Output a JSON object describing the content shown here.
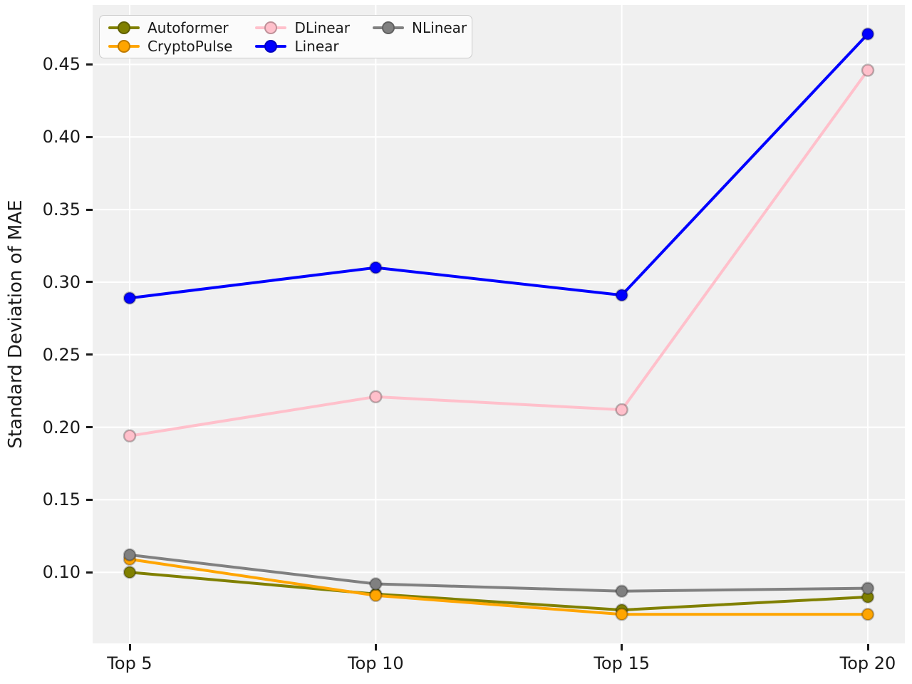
{
  "figure": {
    "background": "#ffffff",
    "plot_background": "#f0f0f0",
    "gridline_color": "#ffffff",
    "text_color": "#1a1a1a"
  },
  "chart_data": {
    "type": "line",
    "title": "",
    "xlabel": "",
    "ylabel": "Standard Deviation of MAE",
    "categories": [
      "Top 5",
      "Top 10",
      "Top 15",
      "Top 20"
    ],
    "series": [
      {
        "name": "Autoformer",
        "color": "#808000",
        "values": [
          0.1,
          0.085,
          0.074,
          0.083
        ]
      },
      {
        "name": "CryptoPulse",
        "color": "#FFA500",
        "values": [
          0.109,
          0.084,
          0.071,
          0.071
        ]
      },
      {
        "name": "DLinear",
        "color": "#FFC0CB",
        "values": [
          0.194,
          0.221,
          0.212,
          0.446
        ]
      },
      {
        "name": "Linear",
        "color": "#0000FF",
        "values": [
          0.289,
          0.31,
          0.291,
          0.471
        ]
      },
      {
        "name": "NLinear",
        "color": "#808080",
        "values": [
          0.112,
          0.092,
          0.087,
          0.089
        ]
      }
    ],
    "yticks": [
      0.1,
      0.15,
      0.2,
      0.25,
      0.3,
      0.35,
      0.4,
      0.45
    ],
    "ytick_labels": [
      "0.10",
      "0.15",
      "0.20",
      "0.25",
      "0.30",
      "0.35",
      "0.40",
      "0.45"
    ],
    "ylim": [
      0.051,
      0.491
    ],
    "grid": true,
    "legend_position": "upper-left",
    "legend_columns": 3,
    "legend_order": [
      "Autoformer",
      "CryptoPulse",
      "DLinear",
      "Linear",
      "NLinear"
    ]
  }
}
